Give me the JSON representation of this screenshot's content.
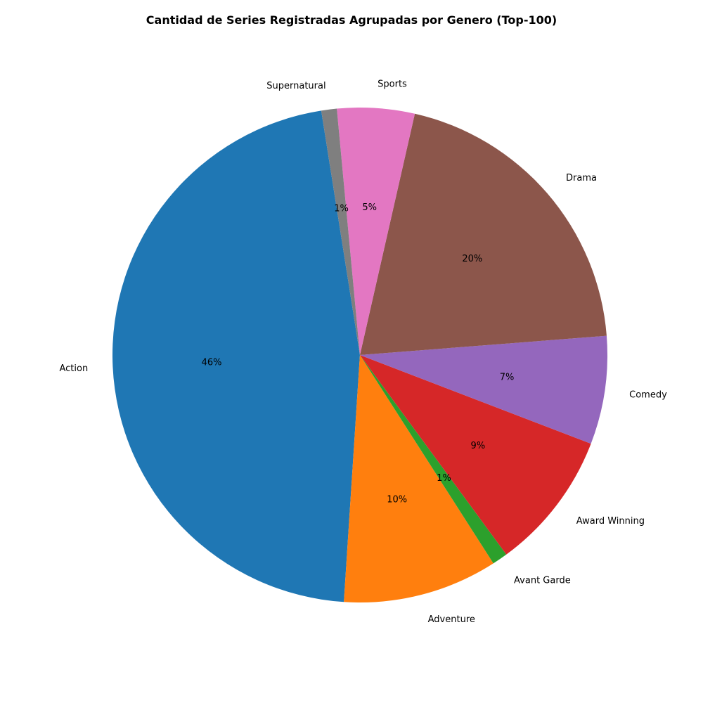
{
  "chart_data": {
    "type": "pie",
    "title": "Cantidad de Series Registradas Agrupadas por Genero (Top-100)",
    "start_angle_deg": 99,
    "direction": "counterclockwise",
    "slices": [
      {
        "label": "Action",
        "value": 46,
        "pct_label": "46%",
        "color": "#1f77b4"
      },
      {
        "label": "Adventure",
        "value": 10,
        "pct_label": "10%",
        "color": "#ff7f0e"
      },
      {
        "label": "Avant Garde",
        "value": 1,
        "pct_label": "1%",
        "color": "#2ca02c"
      },
      {
        "label": "Award Winning",
        "value": 9,
        "pct_label": "9%",
        "color": "#d62728"
      },
      {
        "label": "Comedy",
        "value": 7,
        "pct_label": "7%",
        "color": "#9467bd"
      },
      {
        "label": "Drama",
        "value": 20,
        "pct_label": "20%",
        "color": "#8c564b"
      },
      {
        "label": "Sports",
        "value": 5,
        "pct_label": "5%",
        "color": "#e377c2"
      },
      {
        "label": "Supernatural",
        "value": 1,
        "pct_label": "1%",
        "color": "#7f7f7f"
      }
    ]
  }
}
